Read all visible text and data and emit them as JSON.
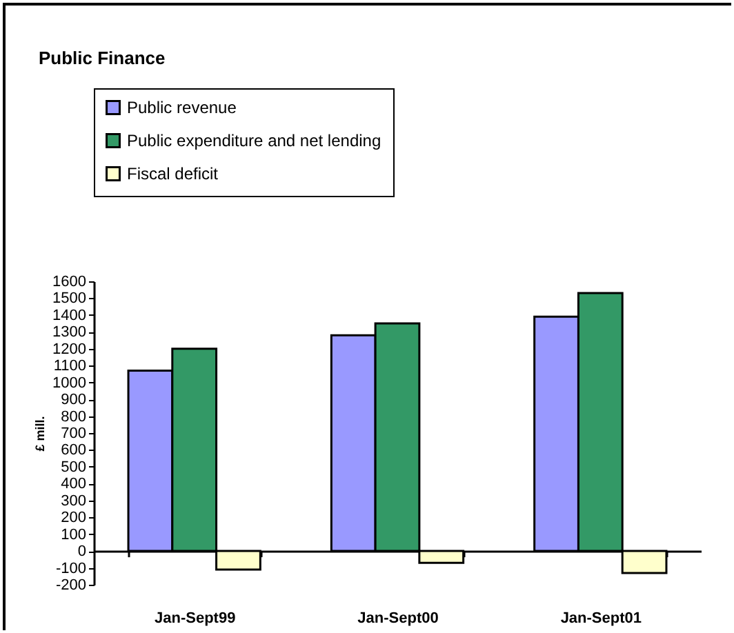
{
  "chart_data": {
    "type": "bar",
    "title": "Public Finance",
    "ylabel": "£ mill.",
    "categories": [
      "Jan-Sept99",
      "Jan-Sept00",
      "Jan-Sept01"
    ],
    "series": [
      {
        "name": "Public revenue",
        "color": "#9999ff",
        "values": [
          1070,
          1280,
          1390
        ]
      },
      {
        "name": "Public expenditure and net lending",
        "color": "#339966",
        "values": [
          1200,
          1350,
          1530
        ]
      },
      {
        "name": "Fiscal deficit",
        "color": "#ffffcc",
        "values": [
          -110,
          -70,
          -130
        ]
      }
    ],
    "ylim": [
      -200,
      1600
    ],
    "yticks": [
      -200,
      -100,
      0,
      100,
      200,
      300,
      400,
      500,
      600,
      700,
      800,
      900,
      1000,
      1100,
      1200,
      1300,
      1400,
      1500,
      1600
    ],
    "legend": "top left"
  }
}
